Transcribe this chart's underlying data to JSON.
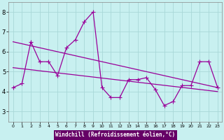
{
  "xlabel": "Windchill (Refroidissement éolien,°C)",
  "bg_color": "#c8f0f0",
  "line_color": "#990099",
  "grid_color": "#a8d8d8",
  "xlabel_bg": "#660066",
  "xlabel_fg": "#ffffff",
  "xlim": [
    -0.5,
    23.5
  ],
  "ylim": [
    2.5,
    8.5
  ],
  "yticks": [
    3,
    4,
    5,
    6,
    7,
    8
  ],
  "xticks": [
    0,
    1,
    2,
    3,
    4,
    5,
    6,
    7,
    8,
    9,
    10,
    11,
    12,
    13,
    14,
    15,
    16,
    17,
    18,
    19,
    20,
    21,
    22,
    23
  ],
  "series1_x": [
    0,
    1,
    2,
    3,
    4,
    5,
    6,
    7,
    8,
    9,
    10,
    11,
    12,
    13,
    14,
    15,
    16,
    17,
    18,
    19,
    20,
    21,
    22,
    23
  ],
  "series1_y": [
    4.2,
    4.4,
    6.5,
    5.5,
    5.5,
    4.8,
    6.2,
    6.6,
    7.5,
    8.0,
    4.2,
    3.7,
    3.7,
    4.6,
    4.6,
    4.7,
    4.1,
    3.3,
    3.5,
    4.3,
    4.3,
    5.5,
    5.5,
    4.2
  ],
  "series2_x": [
    0,
    23
  ],
  "series2_y": [
    6.5,
    4.2
  ],
  "series3_x": [
    0,
    23
  ],
  "series3_y": [
    5.2,
    4.0
  ],
  "linewidth": 0.9
}
